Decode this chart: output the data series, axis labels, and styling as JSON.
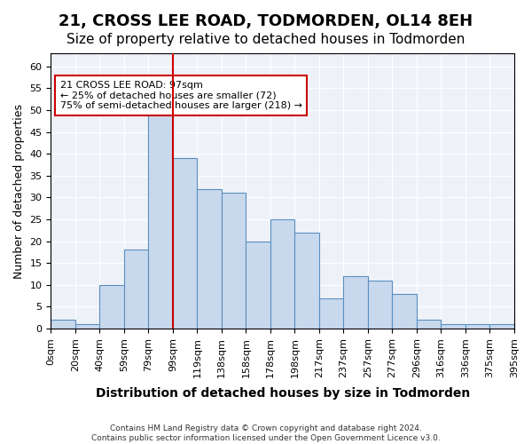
{
  "title": "21, CROSS LEE ROAD, TODMORDEN, OL14 8EH",
  "subtitle": "Size of property relative to detached houses in Todmorden",
  "xlabel": "Distribution of detached houses by size in Todmorden",
  "ylabel": "Number of detached properties",
  "bar_values": [
    2,
    1,
    10,
    18,
    50,
    39,
    32,
    31,
    20,
    25,
    22,
    7,
    12,
    11,
    8,
    2,
    1,
    1,
    1
  ],
  "bin_labels": [
    "0sqm",
    "20sqm",
    "40sqm",
    "59sqm",
    "79sqm",
    "99sqm",
    "119sqm",
    "138sqm",
    "158sqm",
    "178sqm",
    "198sqm",
    "217sqm",
    "237sqm",
    "257sqm",
    "277sqm",
    "296sqm",
    "316sqm",
    "336sqm",
    "375sqm",
    "395sqm"
  ],
  "bar_color": "#c8d9ed",
  "bar_edge_color": "#5a8fc0",
  "red_line_index": 4,
  "annotation_title": "21 CROSS LEE ROAD: 97sqm",
  "annotation_line1": "← 25% of detached houses are smaller (72)",
  "annotation_line2": "75% of semi-detached houses are larger (218) →",
  "annotation_box_color": "#ffffff",
  "annotation_box_edge": "#cc0000",
  "ylim": [
    0,
    63
  ],
  "yticks": [
    0,
    5,
    10,
    15,
    20,
    25,
    30,
    35,
    40,
    45,
    50,
    55,
    60
  ],
  "background_color": "#eef2f8",
  "footer_line1": "Contains HM Land Registry data © Crown copyright and database right 2024.",
  "footer_line2": "Contains public sector information licensed under the Open Government Licence v3.0.",
  "title_fontsize": 13,
  "subtitle_fontsize": 11,
  "xlabel_fontsize": 10,
  "ylabel_fontsize": 9,
  "tick_fontsize": 8,
  "annotation_fontsize": 8
}
